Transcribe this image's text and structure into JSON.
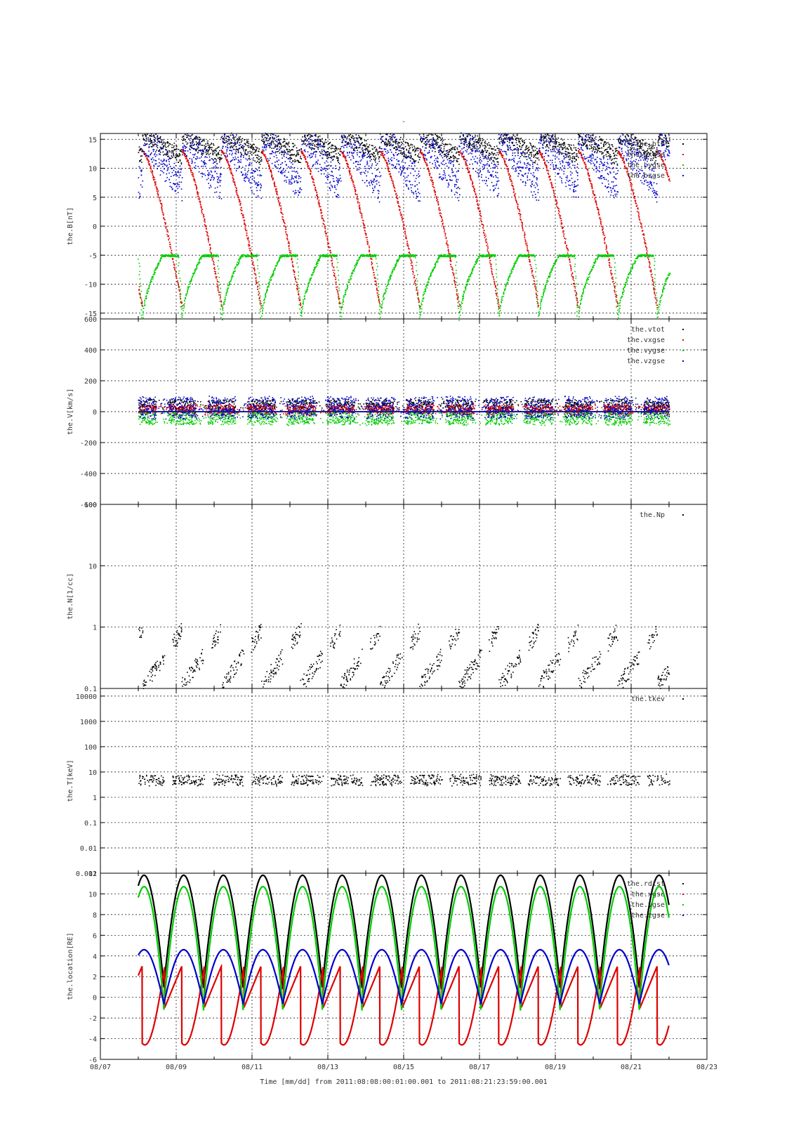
{
  "chart_data": [
    {
      "type": "scatter",
      "ylabel": "the.B[nT]",
      "ylim": [
        -16,
        16
      ],
      "yticks": [
        -15,
        -10,
        -5,
        0,
        5,
        10,
        15
      ],
      "legend_position": "top-right",
      "series": [
        {
          "name": "the.bt0",
          "color": "#000000",
          "shape": "bt"
        },
        {
          "name": "the.bxgse",
          "color": "#dd0000",
          "shape": "bx"
        },
        {
          "name": "the.bygse",
          "color": "#00cc00",
          "shape": "by"
        },
        {
          "name": "the.bzgse",
          "color": "#0000cc",
          "shape": "bz"
        }
      ]
    },
    {
      "type": "scatter",
      "ylabel": "the.V[km/s]",
      "ylim": [
        -600,
        600
      ],
      "yticks": [
        -600,
        -400,
        -200,
        0,
        200,
        400,
        600
      ],
      "legend_position": "top-right",
      "series": [
        {
          "name": "the.vtot",
          "color": "#000000",
          "shape": "vt"
        },
        {
          "name": "the.vxgse",
          "color": "#dd0000",
          "shape": "vx"
        },
        {
          "name": "the.vygse",
          "color": "#00cc00",
          "shape": "vy"
        },
        {
          "name": "the.vzgse",
          "color": "#0000cc",
          "shape": "vz"
        }
      ]
    },
    {
      "type": "scatter",
      "ylabel": "the.N[1/cc]",
      "yscale": "log",
      "ylim": [
        0.1,
        100
      ],
      "yticks": [
        0.1,
        1,
        10,
        100
      ],
      "ytick_labels": [
        "0.1",
        "1",
        "10",
        "100"
      ],
      "legend_position": "top-right",
      "series": [
        {
          "name": "the.Np",
          "color": "#000000",
          "shape": "np"
        }
      ]
    },
    {
      "type": "scatter",
      "ylabel": "the.T[keV]",
      "yscale": "log",
      "ylim": [
        0.001,
        20000
      ],
      "yticks": [
        0.001,
        0.01,
        0.1,
        1,
        10,
        100,
        1000,
        10000
      ],
      "ytick_labels": [
        "0.001",
        "0.01",
        "0.1",
        "1",
        "10",
        "100",
        "1000",
        "10000"
      ],
      "legend_position": "top-right",
      "series": [
        {
          "name": "the.tkev",
          "color": "#000000",
          "shape": "tk"
        }
      ]
    },
    {
      "type": "line",
      "ylabel": "the.location[RE]",
      "ylim": [
        -6,
        12
      ],
      "yticks": [
        -6,
        -4,
        -2,
        0,
        2,
        4,
        6,
        8,
        10,
        12
      ],
      "legend_position": "top-right",
      "series": [
        {
          "name": "the.rdist",
          "color": "#000000",
          "shape": "rd"
        },
        {
          "name": "the.xgse",
          "color": "#dd0000",
          "shape": "xg"
        },
        {
          "name": "the.ygse",
          "color": "#00cc00",
          "shape": "yg"
        },
        {
          "name": "the.zgse",
          "color": "#0000cc",
          "shape": "zg"
        }
      ]
    }
  ],
  "x_axis": {
    "start": "08/07",
    "end": "08/23",
    "tick_labels": [
      "08/07",
      "08/09",
      "08/11",
      "08/13",
      "08/15",
      "08/17",
      "08/19",
      "08/21",
      "08/23"
    ],
    "data_start": "2011-08-08",
    "data_end": "2011-08-22",
    "title": "Time [mm/dd]  from 2011:08:08:00:01:00.001  to  2011:08:21:23:59:00.001"
  },
  "top_title": "-"
}
